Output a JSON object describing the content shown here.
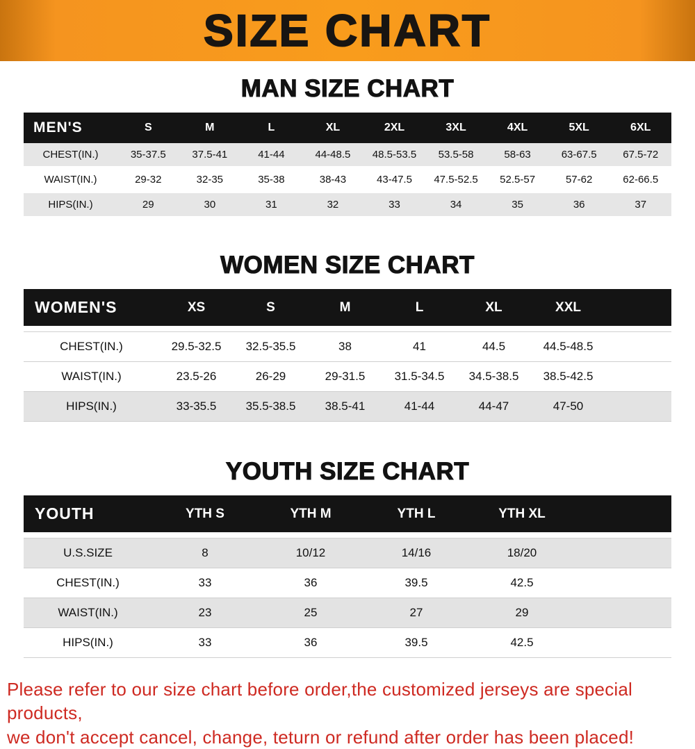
{
  "banner": {
    "title": "SIZE CHART"
  },
  "sections": [
    {
      "heading": "MAN SIZE CHART",
      "table": {
        "header_label": "MEN'S",
        "columns": [
          "S",
          "M",
          "L",
          "XL",
          "2XL",
          "3XL",
          "4XL",
          "5XL",
          "6XL"
        ],
        "rows": [
          {
            "label": "CHEST(IN.)",
            "values": [
              "35-37.5",
              "37.5-41",
              "41-44",
              "44-48.5",
              "48.5-53.5",
              "53.5-58",
              "58-63",
              "63-67.5",
              "67.5-72"
            ]
          },
          {
            "label": "WAIST(IN.)",
            "values": [
              "29-32",
              "32-35",
              "35-38",
              "38-43",
              "43-47.5",
              "47.5-52.5",
              "52.5-57",
              "57-62",
              "62-66.5"
            ]
          },
          {
            "label": "HIPS(IN.)",
            "values": [
              "29",
              "30",
              "31",
              "32",
              "33",
              "34",
              "35",
              "36",
              "37"
            ]
          }
        ]
      }
    },
    {
      "heading": "WOMEN SIZE CHART",
      "table": {
        "header_label": "WOMEN'S",
        "columns": [
          "XS",
          "S",
          "M",
          "L",
          "XL",
          "XXL"
        ],
        "rows": [
          {
            "label": "CHEST(IN.)",
            "values": [
              "29.5-32.5",
              "32.5-35.5",
              "38",
              "41",
              "44.5",
              "44.5-48.5"
            ]
          },
          {
            "label": "WAIST(IN.)",
            "values": [
              "23.5-26",
              "26-29",
              "29-31.5",
              "31.5-34.5",
              "34.5-38.5",
              "38.5-42.5"
            ]
          },
          {
            "label": "HIPS(IN.)",
            "values": [
              "33-35.5",
              "35.5-38.5",
              "38.5-41",
              "41-44",
              "44-47",
              "47-50"
            ]
          }
        ]
      }
    },
    {
      "heading": "YOUTH SIZE CHART",
      "table": {
        "header_label": "YOUTH",
        "columns": [
          "YTH S",
          "YTH M",
          "YTH L",
          "YTH XL"
        ],
        "rows": [
          {
            "label": "U.S.SIZE",
            "values": [
              "8",
              "10/12",
              "14/16",
              "18/20"
            ]
          },
          {
            "label": "CHEST(IN.)",
            "values": [
              "33",
              "36",
              "39.5",
              "42.5"
            ]
          },
          {
            "label": "WAIST(IN.)",
            "values": [
              "23",
              "25",
              "27",
              "29"
            ]
          },
          {
            "label": "HIPS(IN.)",
            "values": [
              "33",
              "36",
              "39.5",
              "42.5"
            ]
          }
        ]
      }
    }
  ],
  "footer": {
    "line1": "Please refer to our size chart before order,the customized jerseys are special products,",
    "line2": "we don't accept cancel, change, teturn or refund after order has been placed!"
  },
  "colors": {
    "banner_orange": "#f5941f",
    "table_header_black": "#141414",
    "row_gray": "#e6e6e6",
    "footer_red": "#ce2a22"
  }
}
